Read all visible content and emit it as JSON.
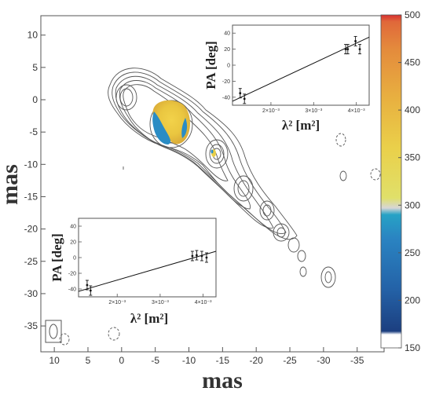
{
  "chart_data": [
    {
      "type": "contour",
      "xlabel": "mas",
      "ylabel": "mas",
      "xlim": [
        12,
        -39
      ],
      "ylim": [
        -39,
        13
      ],
      "x_ticks": [
        "10",
        "5",
        "0",
        "-5",
        "-10",
        "-15",
        "-20",
        "-25",
        "-30",
        "-35"
      ],
      "y_ticks": [
        "10",
        "5",
        "0",
        "-5",
        "-10",
        "-15",
        "-20",
        "-25",
        "-30",
        "-35"
      ],
      "colorbar": {
        "ticks": [
          "150",
          "200",
          "250",
          "300",
          "350",
          "400",
          "450",
          "500"
        ],
        "range": [
          150,
          500
        ],
        "colors": [
          "#ffffff",
          "#1f4e8c",
          "#2a7fc0",
          "#29a6c9",
          "#d9d9a0",
          "#e8d24a",
          "#e6a640",
          "#e27a3a",
          "#d93434"
        ]
      },
      "contour_components": [
        {
          "x": 0,
          "y": 0.2
        },
        {
          "x": -6.5,
          "y": -3.5
        },
        {
          "x": -13,
          "y": -8.5
        },
        {
          "x": -17,
          "y": -15
        },
        {
          "x": -22,
          "y": -18
        },
        {
          "x": -25,
          "y": -20
        },
        {
          "x": -26,
          "y": -22
        },
        {
          "x": -28,
          "y": -24
        },
        {
          "x": -31,
          "y": -28
        }
      ]
    },
    {
      "type": "scatter",
      "xlabel": "λ² [m²]",
      "ylabel": "PA [deg]",
      "xlim": [
        0.0011,
        0.0043
      ],
      "ylim": [
        -50,
        50
      ],
      "x_ticks": [
        "2×10⁻³",
        "3×10⁻³",
        "4×10⁻³"
      ],
      "y_ticks": [
        "40",
        "20",
        "0",
        "-20",
        "-40"
      ],
      "points": [
        {
          "x": 0.00128,
          "y": -35
        },
        {
          "x": 0.00138,
          "y": -42
        },
        {
          "x": 0.00375,
          "y": 20
        },
        {
          "x": 0.0038,
          "y": 20
        },
        {
          "x": 0.00398,
          "y": 30
        },
        {
          "x": 0.00408,
          "y": 20
        }
      ],
      "fit_line": [
        {
          "x": 0.0011,
          "y": -45
        },
        {
          "x": 0.0043,
          "y": 35
        }
      ]
    },
    {
      "type": "scatter",
      "xlabel": "λ² [m²]",
      "ylabel": "PA [deg]",
      "xlim": [
        0.0011,
        0.0043
      ],
      "ylim": [
        -50,
        50
      ],
      "x_ticks": [
        "2×10⁻³",
        "3×10⁻³",
        "4×10⁻³"
      ],
      "y_ticks": [
        "40",
        "20",
        "0",
        "-20",
        "-40"
      ],
      "points": [
        {
          "x": 0.0013,
          "y": -35
        },
        {
          "x": 0.00138,
          "y": -42
        },
        {
          "x": 0.00375,
          "y": 2
        },
        {
          "x": 0.00385,
          "y": 3
        },
        {
          "x": 0.00397,
          "y": 2
        },
        {
          "x": 0.00408,
          "y": 0
        }
      ],
      "fit_line": [
        {
          "x": 0.0011,
          "y": -43
        },
        {
          "x": 0.0043,
          "y": 8
        }
      ]
    }
  ]
}
